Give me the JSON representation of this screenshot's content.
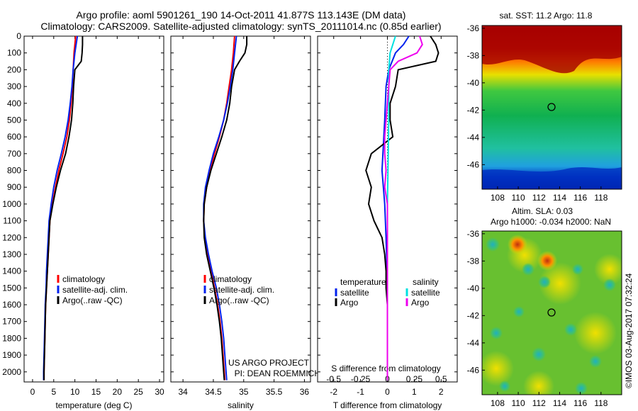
{
  "title_line1": "Argo profile: aoml 5901261_190 14-Oct-2011 41.877S 113.143E (DM data)",
  "title_line2": "Climatology: CARS2009. Satellite-adjusted climatology: synTS_20111014.nc (0.85d earlier)",
  "colors": {
    "climatology": "#ff0000",
    "satellite": "#0022ee",
    "argo": "#000000",
    "salinity_sat": "#00e0e0",
    "salinity_argo": "#ee00ee"
  },
  "chart_data": [
    {
      "type": "line",
      "panel": "temperature",
      "xlabel": "temperature (deg C)",
      "xlim": [
        -2,
        31
      ],
      "ylim": [
        2060,
        0
      ],
      "xticks": [
        0,
        5,
        10,
        15,
        20,
        25,
        30
      ],
      "yticks": [
        0,
        100,
        200,
        300,
        400,
        500,
        600,
        700,
        800,
        900,
        1000,
        1100,
        1200,
        1300,
        1400,
        1500,
        1600,
        1700,
        1800,
        1900,
        2000
      ],
      "legend": [
        "climatology",
        "satellite-adj. clim.",
        "Argo(..raw -QC)"
      ],
      "series": [
        {
          "name": "climatology",
          "depth": [
            0,
            50,
            100,
            200,
            300,
            400,
            500,
            600,
            700,
            800,
            900,
            1000,
            1100,
            1200,
            1300,
            1400,
            1500,
            1600,
            1700,
            1800,
            1900,
            2000,
            2050
          ],
          "values": [
            10.2,
            10.0,
            9.8,
            9.6,
            9.4,
            9.1,
            8.7,
            8.1,
            7.2,
            6.2,
            5.4,
            4.7,
            4.1,
            3.9,
            3.7,
            3.5,
            3.3,
            3.1,
            3.0,
            2.9,
            2.8,
            2.7,
            2.7
          ]
        },
        {
          "name": "satellite-adj. clim.",
          "depth": [
            0,
            50,
            100,
            200,
            300,
            400,
            500,
            600,
            700,
            800,
            900,
            1000,
            1100,
            1200,
            1300,
            1400,
            1500,
            1600,
            1700,
            1800,
            1900,
            2000,
            2050
          ],
          "values": [
            10.6,
            10.3,
            10.0,
            9.6,
            9.3,
            8.9,
            8.4,
            7.7,
            6.8,
            5.8,
            5.0,
            4.4,
            3.9,
            3.7,
            3.5,
            3.3,
            3.2,
            3.0,
            2.9,
            2.8,
            2.7,
            2.6,
            2.6
          ]
        },
        {
          "name": "Argo(..raw -QC)",
          "depth": [
            0,
            50,
            100,
            150,
            200,
            300,
            400,
            500,
            600,
            700,
            800,
            900,
            1000,
            1100,
            1200,
            1300,
            1400,
            1500,
            1600,
            1700,
            1800,
            1900,
            2000,
            2050
          ],
          "values": [
            11.8,
            11.8,
            11.7,
            11.5,
            10.0,
            9.7,
            9.5,
            9.2,
            8.6,
            7.8,
            6.6,
            5.6,
            4.8,
            4.1,
            3.9,
            3.7,
            3.5,
            3.3,
            3.1,
            3.0,
            2.9,
            2.8,
            2.7,
            2.7
          ]
        }
      ]
    },
    {
      "type": "line",
      "panel": "salinity",
      "xlabel": "salinity",
      "xlim": [
        33.8,
        36.1
      ],
      "ylim": [
        2060,
        0
      ],
      "xticks": [
        34,
        34.5,
        35,
        35.5,
        36
      ],
      "legend": [
        "climatology",
        "satellite-adj. clim.",
        "Argo(..raw -QC)"
      ],
      "annotation": [
        "US ARGO PROJECT",
        "PI: DEAN ROEMMICH"
      ],
      "series": [
        {
          "name": "climatology",
          "depth": [
            0,
            100,
            200,
            300,
            400,
            500,
            600,
            700,
            800,
            900,
            1000,
            1100,
            1200,
            1300,
            1400,
            1500,
            1600,
            1700,
            1800,
            1900,
            2000,
            2050
          ],
          "values": [
            34.85,
            34.83,
            34.8,
            34.76,
            34.72,
            34.67,
            34.6,
            34.52,
            34.45,
            34.39,
            34.35,
            34.34,
            34.36,
            34.4,
            34.46,
            34.52,
            34.57,
            34.61,
            34.64,
            34.66,
            34.68,
            34.69
          ]
        },
        {
          "name": "satellite-adj. clim.",
          "depth": [
            0,
            100,
            200,
            300,
            400,
            500,
            600,
            700,
            800,
            900,
            1000,
            1100,
            1200,
            1300,
            1400,
            1500,
            1600,
            1700,
            1800,
            1900,
            2000,
            2050
          ],
          "values": [
            34.88,
            34.85,
            34.82,
            34.78,
            34.73,
            34.67,
            34.59,
            34.5,
            34.43,
            34.37,
            34.34,
            34.34,
            34.37,
            34.42,
            34.48,
            34.55,
            34.6,
            34.64,
            34.67,
            34.69,
            34.71,
            34.72
          ]
        },
        {
          "name": "Argo(..raw -QC)",
          "depth": [
            0,
            50,
            100,
            150,
            200,
            300,
            400,
            500,
            600,
            700,
            800,
            900,
            1000,
            1100,
            1200,
            1300,
            1400,
            1500,
            1600,
            1700,
            1800,
            1900,
            2000,
            2050
          ],
          "values": [
            35.05,
            35.05,
            35.02,
            34.93,
            34.85,
            34.8,
            34.77,
            34.72,
            34.64,
            34.55,
            34.46,
            34.39,
            34.35,
            34.34,
            34.35,
            34.39,
            34.45,
            34.51,
            34.56,
            34.6,
            34.63,
            34.65,
            34.67,
            34.68
          ]
        }
      ]
    },
    {
      "type": "line",
      "panel": "difference",
      "xlabel": "T difference from climatology",
      "xlim": [
        -2.6,
        2.6
      ],
      "ylim": [
        2060,
        0
      ],
      "xticks": [
        -2,
        -1,
        0,
        1,
        2
      ],
      "secondary_xlabel": "S difference from climatology",
      "secondary_ticks": [
        "-0.5",
        "-0.25",
        "0",
        "0.25",
        "0.5"
      ],
      "legend_headers": [
        "temperature",
        "salinity"
      ],
      "legend": [
        "satellite",
        "Argo",
        "satellite",
        "Argo"
      ],
      "series": [
        {
          "name": "temperature satellite",
          "depth": [
            0,
            50,
            100,
            200,
            300,
            500,
            800,
            1000,
            1200,
            1500,
            2050
          ],
          "values": [
            0.8,
            0.6,
            0.3,
            0.05,
            -0.05,
            -0.1,
            -0.2,
            -0.1,
            -0.05,
            0.0,
            0.0
          ]
        },
        {
          "name": "temperature Argo",
          "depth": [
            0,
            50,
            100,
            150,
            200,
            300,
            400,
            500,
            600,
            700,
            800,
            900,
            1000,
            1100,
            1200,
            1300,
            1400,
            1500,
            1600,
            1700,
            1800,
            1900,
            2050
          ],
          "values": [
            1.6,
            1.8,
            1.9,
            1.8,
            0.4,
            0.3,
            0.1,
            0.1,
            0.2,
            -0.6,
            -0.8,
            -0.6,
            -0.7,
            -0.5,
            -0.2,
            -0.1,
            -0.05,
            -0.05,
            0.0,
            0.0,
            0.0,
            0.0,
            0.0
          ]
        },
        {
          "name": "salinity satellite",
          "depth": [
            0,
            50,
            100,
            200,
            300,
            500,
            800,
            1000,
            1500,
            2050
          ],
          "values": [
            0.3,
            0.2,
            0.1,
            0.05,
            0.05,
            0.05,
            0.02,
            0.0,
            0.0,
            0.0
          ]
        },
        {
          "name": "salinity Argo",
          "depth": [
            0,
            50,
            100,
            150,
            200,
            300,
            400,
            500,
            600,
            700,
            800,
            900,
            1000,
            1200,
            1500,
            1700,
            2050
          ],
          "values": [
            1.2,
            1.3,
            1.1,
            0.4,
            0.1,
            0.05,
            0.0,
            -0.05,
            -0.1,
            -0.1,
            -0.05,
            -0.1,
            0.0,
            0.0,
            0.0,
            0.0,
            0.0
          ]
        }
      ]
    }
  ],
  "sst_map": {
    "title": "sat. SST: 11.2 Argo: 11.8",
    "xticks": [
      "108",
      "110",
      "112",
      "114",
      "116",
      "118"
    ],
    "yticks": [
      "-36",
      "-38",
      "-40",
      "-42",
      "-44",
      "-46"
    ]
  },
  "sla_map": {
    "title_line1": "Altim. SLA: 0.03",
    "title_line2": "Argo h1000: -0.034 h2000: NaN",
    "xticks": [
      "108",
      "110",
      "112",
      "114",
      "116",
      "118"
    ],
    "yticks": [
      "-36",
      "-38",
      "-40",
      "-42",
      "-44",
      "-46"
    ]
  },
  "credit": "©IMOS 03-Aug-2017 07:32:24"
}
